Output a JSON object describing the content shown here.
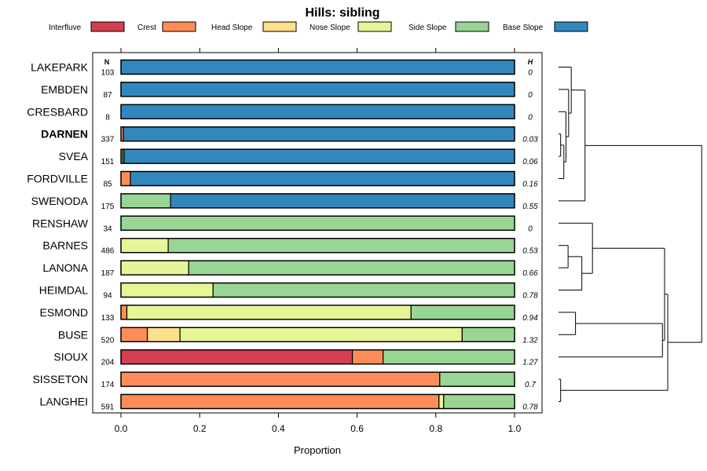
{
  "chart_data": {
    "type": "bar",
    "subtype": "horizontal-stacked-proportion",
    "title": "Hills: sibling",
    "xlabel": "Proportion",
    "ylabel": "",
    "xlim": [
      0,
      1
    ],
    "x_ticks": [
      "0.0",
      "0.2",
      "0.4",
      "0.6",
      "0.8",
      "1.0"
    ],
    "n_header": "N",
    "h_header": "H",
    "legend_position": "top",
    "categories": [
      "Interfluve",
      "Crest",
      "Head Slope",
      "Nose Slope",
      "Side Slope",
      "Base Slope"
    ],
    "colors": [
      "#D53E4F",
      "#FC8D59",
      "#FEE08B",
      "#E6F598",
      "#99D594",
      "#3288BD"
    ],
    "rows": [
      {
        "name": "LAKEPARK",
        "n": "103",
        "h": "0",
        "bold": false,
        "values": [
          0,
          0,
          0,
          0,
          0,
          1
        ]
      },
      {
        "name": "EMBDEN",
        "n": "87",
        "h": "0",
        "bold": false,
        "values": [
          0,
          0,
          0,
          0,
          0,
          1
        ]
      },
      {
        "name": "CRESBARD",
        "n": "8",
        "h": "0",
        "bold": false,
        "values": [
          0,
          0,
          0,
          0,
          0,
          1
        ]
      },
      {
        "name": "DARNEN",
        "n": "337",
        "h": "0.03",
        "bold": true,
        "values": [
          0,
          0.006,
          0,
          0,
          0,
          0.994
        ]
      },
      {
        "name": "SVEA",
        "n": "151",
        "h": "0.06",
        "bold": false,
        "values": [
          0,
          0,
          0,
          0.004,
          0.004,
          0.992
        ]
      },
      {
        "name": "FORDVILLE",
        "n": "85",
        "h": "0.16",
        "bold": false,
        "values": [
          0,
          0.024,
          0,
          0,
          0,
          0.976
        ]
      },
      {
        "name": "SWENODA",
        "n": "175",
        "h": "0.55",
        "bold": false,
        "values": [
          0,
          0,
          0,
          0,
          0.126,
          0.874
        ]
      },
      {
        "name": "RENSHAW",
        "n": "34",
        "h": "0",
        "bold": false,
        "values": [
          0,
          0,
          0,
          0,
          1,
          0
        ]
      },
      {
        "name": "BARNES",
        "n": "486",
        "h": "0.53",
        "bold": false,
        "values": [
          0,
          0,
          0,
          0.12,
          0.88,
          0
        ]
      },
      {
        "name": "LANONA",
        "n": "187",
        "h": "0.66",
        "bold": false,
        "values": [
          0,
          0,
          0,
          0.172,
          0.828,
          0
        ]
      },
      {
        "name": "HEIMDAL",
        "n": "94",
        "h": "0.78",
        "bold": false,
        "values": [
          0,
          0,
          0,
          0.234,
          0.766,
          0
        ]
      },
      {
        "name": "ESMOND",
        "n": "133",
        "h": "0.94",
        "bold": false,
        "values": [
          0,
          0.015,
          0,
          0.722,
          0.263,
          0
        ]
      },
      {
        "name": "BUSE",
        "n": "520",
        "h": "1.32",
        "bold": false,
        "values": [
          0,
          0.067,
          0.083,
          0.717,
          0.133,
          0
        ]
      },
      {
        "name": "SIOUX",
        "n": "204",
        "h": "1.27",
        "bold": false,
        "values": [
          0.588,
          0.078,
          0,
          0,
          0.334,
          0
        ]
      },
      {
        "name": "SISSETON",
        "n": "174",
        "h": "0.7",
        "bold": false,
        "values": [
          0,
          0.81,
          0,
          0,
          0.19,
          0
        ]
      },
      {
        "name": "LANGHEI",
        "n": "591",
        "h": "0.78",
        "bold": false,
        "values": [
          0,
          0.808,
          0,
          0.012,
          0.18,
          0
        ]
      }
    ],
    "dendrogram": {
      "leaves": [
        "LAKEPARK",
        "EMBDEN",
        "CRESBARD",
        "DARNEN",
        "SVEA",
        "FORDVILLE",
        "SWENODA",
        "RENSHAW",
        "BARNES",
        "LANONA",
        "HEIMDAL",
        "ESMOND",
        "BUSE",
        "SIOUX",
        "SISSETON",
        "LANGHEI"
      ],
      "merges": [
        {
          "a": [
            "leaf",
            3
          ],
          "b": [
            "leaf",
            4
          ],
          "height": 0.02
        },
        {
          "a": [
            "merge",
            0
          ],
          "b": [
            "leaf",
            5
          ],
          "height": 0.05
        },
        {
          "a": [
            "leaf",
            2
          ],
          "b": [
            "merge",
            1
          ],
          "height": 0.07
        },
        {
          "a": [
            "leaf",
            14
          ],
          "b": [
            "leaf",
            15
          ],
          "height": 0.02
        },
        {
          "a": [
            "leaf",
            1
          ],
          "b": [
            "merge",
            2
          ],
          "height": 0.095
        },
        {
          "a": [
            "leaf",
            0
          ],
          "b": [
            "merge",
            4
          ],
          "height": 0.12
        },
        {
          "a": [
            "leaf",
            8
          ],
          "b": [
            "leaf",
            9
          ],
          "height": 0.09
        },
        {
          "a": [
            "merge",
            5
          ],
          "b": [
            "leaf",
            6
          ],
          "height": 0.25
        },
        {
          "a": [
            "merge",
            6
          ],
          "b": [
            "leaf",
            10
          ],
          "height": 0.22
        },
        {
          "a": [
            "leaf",
            11
          ],
          "b": [
            "leaf",
            12
          ],
          "height": 0.16
        },
        {
          "a": [
            "leaf",
            7
          ],
          "b": [
            "merge",
            8
          ],
          "height": 0.32
        },
        {
          "a": [
            "merge",
            9
          ],
          "b": [
            "leaf",
            13
          ],
          "height": 0.98
        },
        {
          "a": [
            "merge",
            10
          ],
          "b": [
            "merge",
            11
          ],
          "height": 1.0
        },
        {
          "a": [
            "merge",
            12
          ],
          "b": [
            "merge",
            3
          ],
          "height": 1.03
        },
        {
          "a": [
            "merge",
            7
          ],
          "b": [
            "merge",
            13
          ],
          "height": 1.35
        }
      ]
    }
  }
}
